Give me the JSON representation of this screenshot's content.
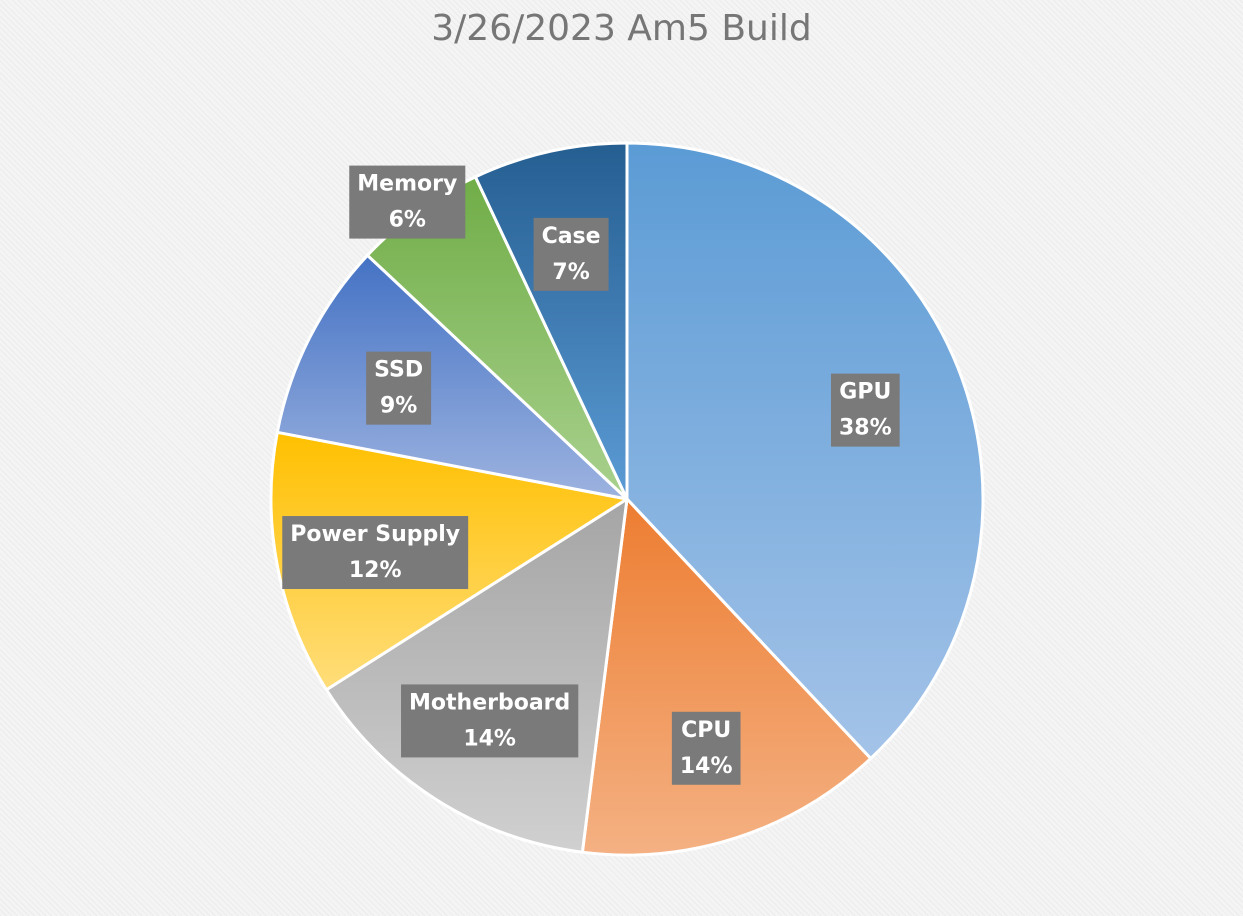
{
  "chart_data": {
    "type": "pie",
    "title": "3/26/2023 Am5 Build",
    "slices": [
      {
        "name": "GPU",
        "value": 38,
        "label": "38%",
        "color_top": "#5b9bd5",
        "color_bottom": "#a4c3e8"
      },
      {
        "name": "CPU",
        "value": 14,
        "label": "14%",
        "color_top": "#ed7d31",
        "color_bottom": "#f4b183"
      },
      {
        "name": "Motherboard",
        "value": 14,
        "label": "14%",
        "color_top": "#a5a5a5",
        "color_bottom": "#d0d0d0"
      },
      {
        "name": "Power Supply",
        "value": 12,
        "label": "12%",
        "color_top": "#ffc000",
        "color_bottom": "#ffdd7a"
      },
      {
        "name": "SSD",
        "value": 9,
        "label": "9%",
        "color_top": "#4472c4",
        "color_bottom": "#9db3e0"
      },
      {
        "name": "Memory",
        "value": 6,
        "label": "6%",
        "color_top": "#70ad47",
        "color_bottom": "#a9d18e"
      },
      {
        "name": "Case",
        "value": 7,
        "label": "7%",
        "color_top": "#255e91",
        "color_bottom": "#5b9bd5"
      }
    ],
    "label_box_color": "#7a7a7a"
  }
}
